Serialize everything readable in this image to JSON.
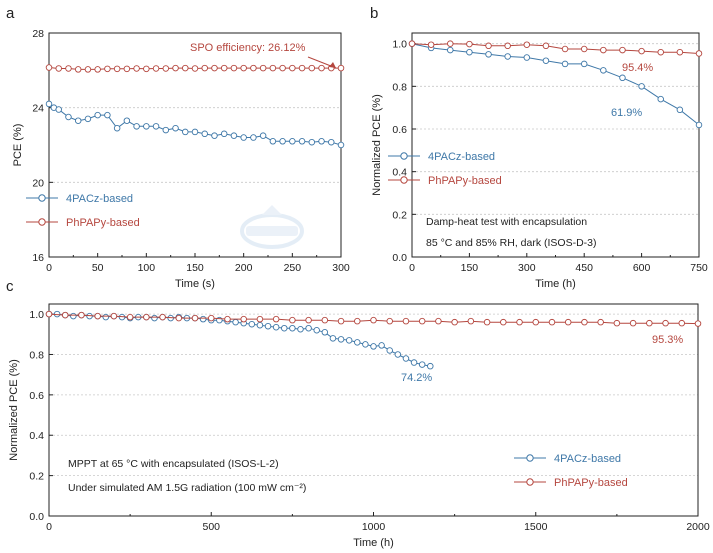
{
  "colors": {
    "blue": "#3f78a8",
    "red": "#b5473f",
    "grid": "#c8c8c8",
    "axis": "#222222",
    "watermark": "#dbe7f3"
  },
  "chart_data": [
    {
      "panel_label": "a",
      "type": "scatter",
      "xlabel": "Time (s)",
      "ylabel": "PCE (%)",
      "xlim": [
        0,
        300
      ],
      "ylim": [
        16,
        28
      ],
      "xticks": [
        0,
        50,
        100,
        150,
        200,
        250,
        300
      ],
      "yticks": [
        16,
        20,
        24,
        28
      ],
      "grid": "horizontal dashed",
      "legend_placement": "bottom-left",
      "annotation": "SPO efficiency: 26.12%",
      "series": [
        {
          "name": "4PACz-based",
          "color": "#3f78a8",
          "x": [
            0,
            5,
            10,
            20,
            30,
            40,
            50,
            60,
            70,
            80,
            90,
            100,
            110,
            120,
            130,
            140,
            150,
            160,
            170,
            180,
            190,
            200,
            210,
            220,
            230,
            240,
            250,
            260,
            270,
            280,
            290,
            300
          ],
          "y": [
            24.2,
            24.0,
            23.9,
            23.5,
            23.3,
            23.4,
            23.6,
            23.6,
            22.9,
            23.3,
            23.0,
            23.0,
            23.0,
            22.8,
            22.9,
            22.7,
            22.7,
            22.6,
            22.5,
            22.6,
            22.5,
            22.4,
            22.4,
            22.5,
            22.2,
            22.2,
            22.2,
            22.2,
            22.15,
            22.2,
            22.15,
            22.0
          ]
        },
        {
          "name": "PhPAPy-based",
          "color": "#b5473f",
          "x": [
            0,
            10,
            20,
            30,
            40,
            50,
            60,
            70,
            80,
            90,
            100,
            110,
            120,
            130,
            140,
            150,
            160,
            170,
            180,
            190,
            200,
            210,
            220,
            230,
            240,
            250,
            260,
            270,
            280,
            290,
            300
          ],
          "y": [
            26.15,
            26.1,
            26.1,
            26.05,
            26.05,
            26.05,
            26.08,
            26.08,
            26.08,
            26.1,
            26.08,
            26.1,
            26.1,
            26.12,
            26.12,
            26.1,
            26.12,
            26.12,
            26.12,
            26.12,
            26.12,
            26.12,
            26.12,
            26.12,
            26.12,
            26.12,
            26.12,
            26.12,
            26.12,
            26.12,
            26.12
          ]
        }
      ]
    },
    {
      "panel_label": "b",
      "type": "line",
      "xlabel": "Time (h)",
      "ylabel": "Normalized PCE (%)",
      "xlim": [
        0,
        750
      ],
      "ylim": [
        0,
        1.05
      ],
      "xticks": [
        0,
        150,
        300,
        450,
        600,
        750
      ],
      "yticks": [
        0.0,
        0.2,
        0.4,
        0.6,
        0.8,
        1.0
      ],
      "grid": "horizontal dashed",
      "legend_placement": "center-left",
      "notes": [
        "Damp-heat test with encapsulation",
        "85 °C and 85% RH, dark (ISOS-D-3)"
      ],
      "end_labels": [
        "95.4%",
        "61.9%"
      ],
      "series": [
        {
          "name": "4PACz-based",
          "color": "#3f78a8",
          "x": [
            0,
            50,
            100,
            150,
            200,
            250,
            300,
            350,
            400,
            450,
            500,
            550,
            600,
            650,
            700,
            750
          ],
          "y": [
            1.0,
            0.98,
            0.97,
            0.96,
            0.95,
            0.94,
            0.935,
            0.92,
            0.905,
            0.905,
            0.875,
            0.84,
            0.8,
            0.74,
            0.69,
            0.619
          ]
        },
        {
          "name": "PhPAPy-based",
          "color": "#b5473f",
          "x": [
            0,
            50,
            100,
            150,
            200,
            250,
            300,
            350,
            400,
            450,
            500,
            550,
            600,
            650,
            700,
            750
          ],
          "y": [
            1.0,
            0.995,
            1.0,
            0.998,
            0.99,
            0.99,
            0.995,
            0.99,
            0.975,
            0.975,
            0.97,
            0.97,
            0.965,
            0.96,
            0.96,
            0.954
          ]
        }
      ]
    },
    {
      "panel_label": "c",
      "type": "line",
      "xlabel": "Time (h)",
      "ylabel": "Normalized  PCE (%)",
      "xlim": [
        0,
        2000
      ],
      "ylim": [
        0,
        1.05
      ],
      "xticks": [
        0,
        500,
        1000,
        1500,
        2000
      ],
      "yticks": [
        0.0,
        0.2,
        0.4,
        0.6,
        0.8,
        1.0
      ],
      "grid": "horizontal dashed",
      "legend_placement": "bottom-right",
      "notes": [
        "MPPT at 65 °C with encapsulated (ISOS-L-2)",
        "Under simulated AM 1.5G radiation (100 mW cm⁻²)"
      ],
      "end_labels": [
        "95.3%",
        "74.2%"
      ],
      "series": [
        {
          "name": "4PACz-based",
          "color": "#3f78a8",
          "x": [
            0,
            25,
            50,
            75,
            100,
            125,
            150,
            175,
            200,
            225,
            250,
            275,
            300,
            325,
            350,
            375,
            400,
            425,
            450,
            475,
            500,
            525,
            550,
            575,
            600,
            625,
            650,
            675,
            700,
            725,
            750,
            775,
            800,
            825,
            850,
            875,
            900,
            925,
            950,
            975,
            1000,
            1025,
            1050,
            1075,
            1100,
            1125,
            1150,
            1175
          ],
          "y": [
            1.0,
            1.0,
            0.995,
            0.99,
            0.995,
            0.99,
            0.99,
            0.985,
            0.99,
            0.985,
            0.98,
            0.985,
            0.985,
            0.98,
            0.985,
            0.98,
            0.985,
            0.98,
            0.98,
            0.975,
            0.97,
            0.97,
            0.965,
            0.96,
            0.955,
            0.95,
            0.945,
            0.94,
            0.935,
            0.93,
            0.93,
            0.925,
            0.93,
            0.92,
            0.91,
            0.88,
            0.875,
            0.87,
            0.86,
            0.85,
            0.84,
            0.845,
            0.82,
            0.8,
            0.78,
            0.76,
            0.75,
            0.742
          ]
        },
        {
          "name": "PhPAPy-based",
          "color": "#b5473f",
          "x": [
            0,
            50,
            100,
            150,
            200,
            250,
            300,
            350,
            400,
            450,
            500,
            550,
            600,
            650,
            700,
            750,
            800,
            850,
            900,
            950,
            1000,
            1050,
            1100,
            1150,
            1200,
            1250,
            1300,
            1350,
            1400,
            1450,
            1500,
            1550,
            1600,
            1650,
            1700,
            1750,
            1800,
            1850,
            1900,
            1950,
            2000
          ],
          "y": [
            1.0,
            0.995,
            0.995,
            0.99,
            0.99,
            0.985,
            0.985,
            0.985,
            0.98,
            0.98,
            0.98,
            0.975,
            0.975,
            0.975,
            0.975,
            0.97,
            0.97,
            0.97,
            0.965,
            0.965,
            0.97,
            0.965,
            0.965,
            0.965,
            0.965,
            0.96,
            0.965,
            0.96,
            0.96,
            0.96,
            0.96,
            0.96,
            0.96,
            0.96,
            0.96,
            0.955,
            0.955,
            0.955,
            0.955,
            0.955,
            0.953
          ]
        }
      ]
    }
  ]
}
